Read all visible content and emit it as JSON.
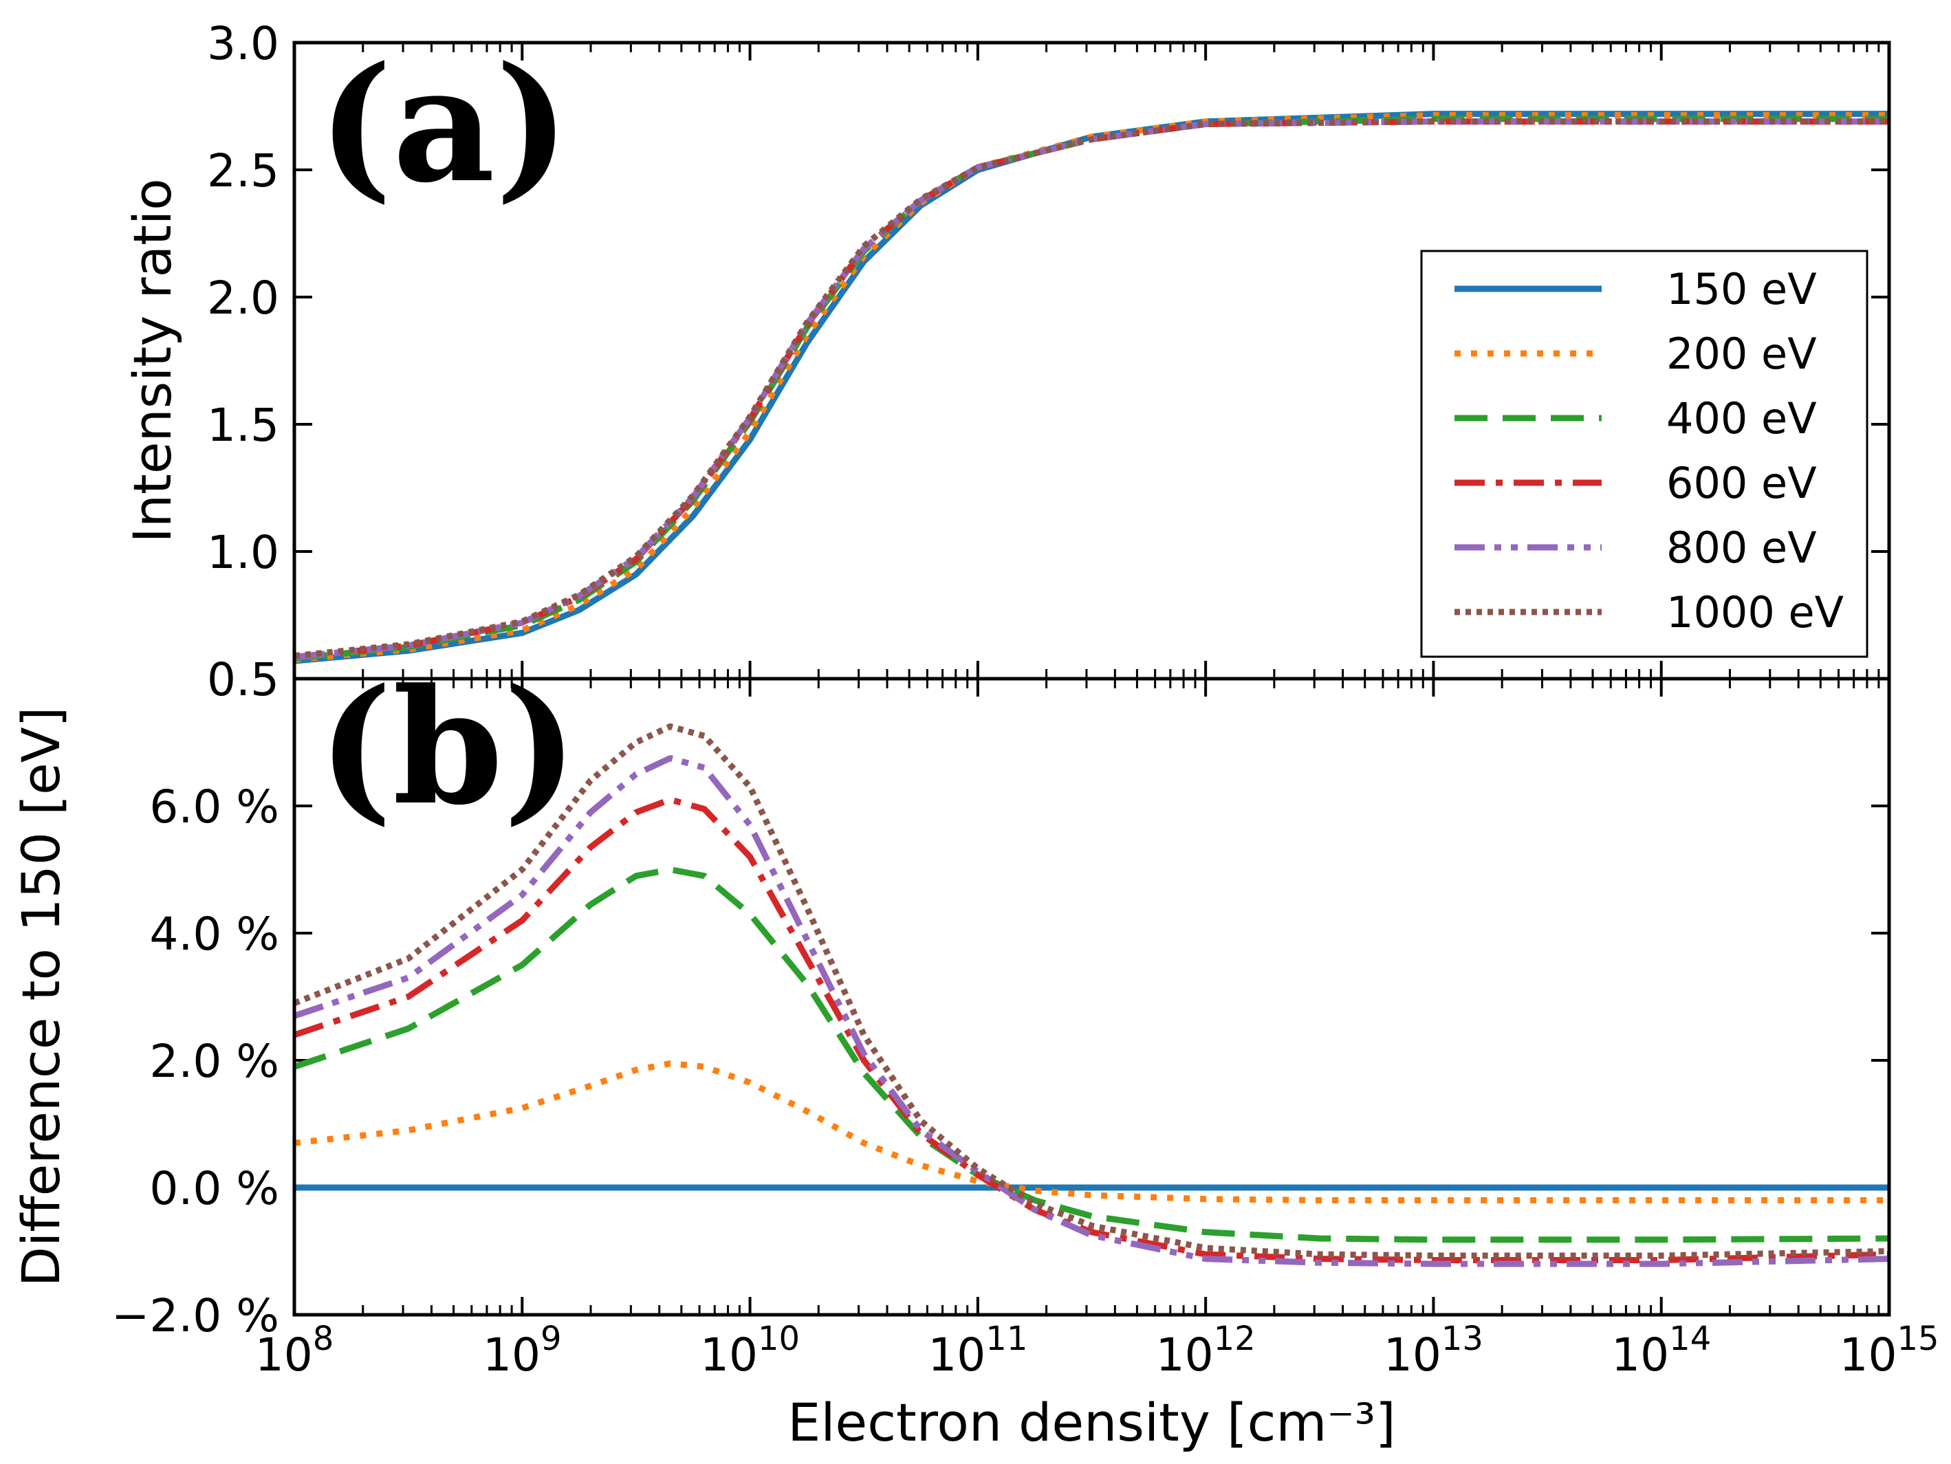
{
  "chart_data": [
    {
      "type": "line",
      "panel_label": "(a)",
      "title": "",
      "ylabel": "Intensity ratio",
      "xlabel": "",
      "xscale": "log",
      "xlim": [
        100000000.0,
        1000000000000000.0
      ],
      "ylim": [
        0.5,
        3.0
      ],
      "yticks": [
        0.5,
        1.0,
        1.5,
        2.0,
        2.5,
        3.0
      ],
      "ytick_labels": [
        "0.5",
        "1.0",
        "1.5",
        "2.0",
        "2.5",
        "3.0"
      ],
      "grid": false,
      "legend_position": "center-right",
      "x": [
        8,
        8.5,
        9,
        9.25,
        9.5,
        9.75,
        10,
        10.25,
        10.5,
        10.75,
        11,
        11.5,
        12,
        13,
        14,
        15
      ],
      "series": [
        {
          "name": "150 eV",
          "color": "#1f77b4",
          "dash": "solid",
          "values": [
            0.57,
            0.61,
            0.68,
            0.77,
            0.91,
            1.14,
            1.44,
            1.82,
            2.14,
            2.36,
            2.5,
            2.63,
            2.69,
            2.72,
            2.72,
            2.72
          ]
        },
        {
          "name": "200 eV",
          "color": "#ff7f0e",
          "dash": "dotted",
          "values": [
            0.575,
            0.615,
            0.69,
            0.79,
            0.93,
            1.17,
            1.47,
            1.85,
            2.16,
            2.37,
            2.51,
            2.63,
            2.69,
            2.715,
            2.715,
            2.715
          ]
        },
        {
          "name": "400 eV",
          "color": "#2ca02c",
          "dash": "dashed",
          "values": [
            0.58,
            0.625,
            0.71,
            0.81,
            0.96,
            1.2,
            1.51,
            1.88,
            2.18,
            2.38,
            2.51,
            2.62,
            2.68,
            2.7,
            2.7,
            2.7
          ]
        },
        {
          "name": "600 eV",
          "color": "#d62728",
          "dash": "dashdot",
          "values": [
            0.585,
            0.63,
            0.72,
            0.82,
            0.97,
            1.21,
            1.52,
            1.89,
            2.19,
            2.38,
            2.51,
            2.62,
            2.68,
            2.69,
            2.69,
            2.69
          ]
        },
        {
          "name": "800 eV",
          "color": "#9467bd",
          "dash": "dashdotdot",
          "values": [
            0.585,
            0.63,
            0.72,
            0.825,
            0.975,
            1.215,
            1.525,
            1.895,
            2.19,
            2.38,
            2.51,
            2.62,
            2.68,
            2.69,
            2.69,
            2.69
          ]
        },
        {
          "name": "1000 eV",
          "color": "#8c564b",
          "dash": "dotted-dense",
          "values": [
            0.59,
            0.635,
            0.725,
            0.83,
            0.98,
            1.22,
            1.53,
            1.9,
            2.2,
            2.385,
            2.51,
            2.62,
            2.68,
            2.69,
            2.69,
            2.69
          ]
        }
      ],
      "legend_labels": [
        "150 eV",
        "200 eV",
        "400 eV",
        "600 eV",
        "800 eV",
        "1000 eV"
      ]
    },
    {
      "type": "line",
      "panel_label": "(b)",
      "title": "",
      "ylabel": "Difference to  150  [eV]",
      "xlabel": "Electron density [cm⁻³]",
      "xscale": "log",
      "xlim": [
        100000000.0,
        1000000000000000.0
      ],
      "ylim": [
        -2.0,
        8.0
      ],
      "yticks": [
        -2.0,
        0.0,
        2.0,
        4.0,
        6.0
      ],
      "ytick_labels": [
        "−2.0 %",
        "0.0 %",
        "2.0 %",
        "4.0 %",
        "6.0 %"
      ],
      "xticks": [
        8,
        9,
        10,
        11,
        12,
        13,
        14,
        15
      ],
      "xtick_labels": [
        {
          "base": "10",
          "exp": "8"
        },
        {
          "base": "10",
          "exp": "9"
        },
        {
          "base": "10",
          "exp": "10"
        },
        {
          "base": "10",
          "exp": "11"
        },
        {
          "base": "10",
          "exp": "12"
        },
        {
          "base": "10",
          "exp": "13"
        },
        {
          "base": "10",
          "exp": "14"
        },
        {
          "base": "10",
          "exp": "15"
        }
      ],
      "grid": false,
      "x": [
        8,
        8.5,
        9,
        9.3,
        9.5,
        9.65,
        9.8,
        10,
        10.25,
        10.5,
        10.75,
        11,
        11.25,
        11.5,
        12,
        12.5,
        13,
        14,
        15
      ],
      "series": [
        {
          "name": "150 eV",
          "color": "#1f77b4",
          "dash": "solid",
          "values": [
            0,
            0,
            0,
            0,
            0,
            0,
            0,
            0,
            0,
            0,
            0,
            0,
            0,
            0,
            0,
            0,
            0,
            0,
            0
          ]
        },
        {
          "name": "200 eV",
          "color": "#ff7f0e",
          "dash": "dotted",
          "values": [
            0.7,
            0.9,
            1.25,
            1.6,
            1.85,
            1.95,
            1.9,
            1.65,
            1.2,
            0.7,
            0.35,
            0.1,
            -0.05,
            -0.12,
            -0.18,
            -0.2,
            -0.2,
            -0.2,
            -0.2
          ]
        },
        {
          "name": "400 eV",
          "color": "#2ca02c",
          "dash": "dashed",
          "values": [
            1.9,
            2.5,
            3.5,
            4.45,
            4.9,
            5.0,
            4.9,
            4.3,
            3.2,
            1.8,
            0.8,
            0.2,
            -0.2,
            -0.45,
            -0.7,
            -0.8,
            -0.82,
            -0.82,
            -0.8
          ]
        },
        {
          "name": "600 eV",
          "color": "#d62728",
          "dash": "dashdot",
          "values": [
            2.4,
            3.0,
            4.2,
            5.35,
            5.9,
            6.1,
            5.95,
            5.2,
            3.6,
            2.0,
            0.85,
            0.2,
            -0.35,
            -0.7,
            -1.05,
            -1.12,
            -1.14,
            -1.14,
            -1.05
          ]
        },
        {
          "name": "800 eV",
          "color": "#9467bd",
          "dash": "dashdotdot",
          "values": [
            2.7,
            3.3,
            4.6,
            5.9,
            6.5,
            6.75,
            6.6,
            5.7,
            3.9,
            2.1,
            0.9,
            0.25,
            -0.35,
            -0.75,
            -1.12,
            -1.18,
            -1.2,
            -1.2,
            -1.12
          ]
        },
        {
          "name": "1000 eV",
          "color": "#8c564b",
          "dash": "dotted-dense",
          "values": [
            2.9,
            3.6,
            5.0,
            6.4,
            7.0,
            7.25,
            7.1,
            6.3,
            4.4,
            2.4,
            1.05,
            0.3,
            -0.25,
            -0.6,
            -0.95,
            -1.05,
            -1.07,
            -1.07,
            -1.0
          ]
        }
      ]
    }
  ]
}
